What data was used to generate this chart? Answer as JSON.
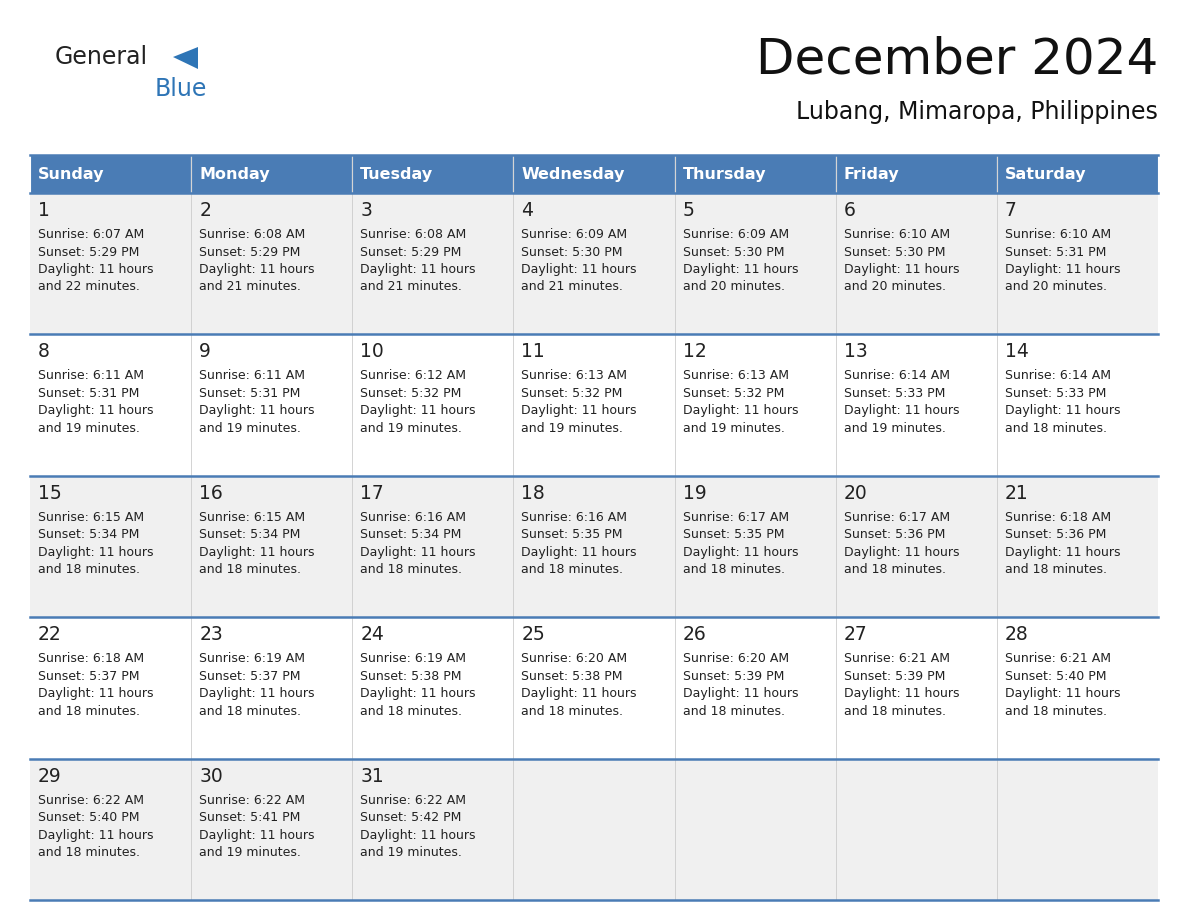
{
  "title": "December 2024",
  "subtitle": "Lubang, Mimaropa, Philippines",
  "header_bg_color": "#4a7cb5",
  "header_text_color": "#FFFFFF",
  "day_names": [
    "Sunday",
    "Monday",
    "Tuesday",
    "Wednesday",
    "Thursday",
    "Friday",
    "Saturday"
  ],
  "row_bg_colors": [
    "#f0f0f0",
    "#ffffff",
    "#f0f0f0",
    "#ffffff",
    "#f0f0f0"
  ],
  "cell_text_color": "#222222",
  "date_text_color": "#222222",
  "divider_color": "#4a7cb5",
  "logo_general_color": "#222222",
  "logo_blue_color": "#2E75B6",
  "calendar_data": [
    [
      {
        "day": 1,
        "sunrise": "6:07 AM",
        "sunset": "5:29 PM",
        "daylight_h": "11 hours",
        "daylight_m": "and 22 minutes."
      },
      {
        "day": 2,
        "sunrise": "6:08 AM",
        "sunset": "5:29 PM",
        "daylight_h": "11 hours",
        "daylight_m": "and 21 minutes."
      },
      {
        "day": 3,
        "sunrise": "6:08 AM",
        "sunset": "5:29 PM",
        "daylight_h": "11 hours",
        "daylight_m": "and 21 minutes."
      },
      {
        "day": 4,
        "sunrise": "6:09 AM",
        "sunset": "5:30 PM",
        "daylight_h": "11 hours",
        "daylight_m": "and 21 minutes."
      },
      {
        "day": 5,
        "sunrise": "6:09 AM",
        "sunset": "5:30 PM",
        "daylight_h": "11 hours",
        "daylight_m": "and 20 minutes."
      },
      {
        "day": 6,
        "sunrise": "6:10 AM",
        "sunset": "5:30 PM",
        "daylight_h": "11 hours",
        "daylight_m": "and 20 minutes."
      },
      {
        "day": 7,
        "sunrise": "6:10 AM",
        "sunset": "5:31 PM",
        "daylight_h": "11 hours",
        "daylight_m": "and 20 minutes."
      }
    ],
    [
      {
        "day": 8,
        "sunrise": "6:11 AM",
        "sunset": "5:31 PM",
        "daylight_h": "11 hours",
        "daylight_m": "and 19 minutes."
      },
      {
        "day": 9,
        "sunrise": "6:11 AM",
        "sunset": "5:31 PM",
        "daylight_h": "11 hours",
        "daylight_m": "and 19 minutes."
      },
      {
        "day": 10,
        "sunrise": "6:12 AM",
        "sunset": "5:32 PM",
        "daylight_h": "11 hours",
        "daylight_m": "and 19 minutes."
      },
      {
        "day": 11,
        "sunrise": "6:13 AM",
        "sunset": "5:32 PM",
        "daylight_h": "11 hours",
        "daylight_m": "and 19 minutes."
      },
      {
        "day": 12,
        "sunrise": "6:13 AM",
        "sunset": "5:32 PM",
        "daylight_h": "11 hours",
        "daylight_m": "and 19 minutes."
      },
      {
        "day": 13,
        "sunrise": "6:14 AM",
        "sunset": "5:33 PM",
        "daylight_h": "11 hours",
        "daylight_m": "and 19 minutes."
      },
      {
        "day": 14,
        "sunrise": "6:14 AM",
        "sunset": "5:33 PM",
        "daylight_h": "11 hours",
        "daylight_m": "and 18 minutes."
      }
    ],
    [
      {
        "day": 15,
        "sunrise": "6:15 AM",
        "sunset": "5:34 PM",
        "daylight_h": "11 hours",
        "daylight_m": "and 18 minutes."
      },
      {
        "day": 16,
        "sunrise": "6:15 AM",
        "sunset": "5:34 PM",
        "daylight_h": "11 hours",
        "daylight_m": "and 18 minutes."
      },
      {
        "day": 17,
        "sunrise": "6:16 AM",
        "sunset": "5:34 PM",
        "daylight_h": "11 hours",
        "daylight_m": "and 18 minutes."
      },
      {
        "day": 18,
        "sunrise": "6:16 AM",
        "sunset": "5:35 PM",
        "daylight_h": "11 hours",
        "daylight_m": "and 18 minutes."
      },
      {
        "day": 19,
        "sunrise": "6:17 AM",
        "sunset": "5:35 PM",
        "daylight_h": "11 hours",
        "daylight_m": "and 18 minutes."
      },
      {
        "day": 20,
        "sunrise": "6:17 AM",
        "sunset": "5:36 PM",
        "daylight_h": "11 hours",
        "daylight_m": "and 18 minutes."
      },
      {
        "day": 21,
        "sunrise": "6:18 AM",
        "sunset": "5:36 PM",
        "daylight_h": "11 hours",
        "daylight_m": "and 18 minutes."
      }
    ],
    [
      {
        "day": 22,
        "sunrise": "6:18 AM",
        "sunset": "5:37 PM",
        "daylight_h": "11 hours",
        "daylight_m": "and 18 minutes."
      },
      {
        "day": 23,
        "sunrise": "6:19 AM",
        "sunset": "5:37 PM",
        "daylight_h": "11 hours",
        "daylight_m": "and 18 minutes."
      },
      {
        "day": 24,
        "sunrise": "6:19 AM",
        "sunset": "5:38 PM",
        "daylight_h": "11 hours",
        "daylight_m": "and 18 minutes."
      },
      {
        "day": 25,
        "sunrise": "6:20 AM",
        "sunset": "5:38 PM",
        "daylight_h": "11 hours",
        "daylight_m": "and 18 minutes."
      },
      {
        "day": 26,
        "sunrise": "6:20 AM",
        "sunset": "5:39 PM",
        "daylight_h": "11 hours",
        "daylight_m": "and 18 minutes."
      },
      {
        "day": 27,
        "sunrise": "6:21 AM",
        "sunset": "5:39 PM",
        "daylight_h": "11 hours",
        "daylight_m": "and 18 minutes."
      },
      {
        "day": 28,
        "sunrise": "6:21 AM",
        "sunset": "5:40 PM",
        "daylight_h": "11 hours",
        "daylight_m": "and 18 minutes."
      }
    ],
    [
      {
        "day": 29,
        "sunrise": "6:22 AM",
        "sunset": "5:40 PM",
        "daylight_h": "11 hours",
        "daylight_m": "and 18 minutes."
      },
      {
        "day": 30,
        "sunrise": "6:22 AM",
        "sunset": "5:41 PM",
        "daylight_h": "11 hours",
        "daylight_m": "and 19 minutes."
      },
      {
        "day": 31,
        "sunrise": "6:22 AM",
        "sunset": "5:42 PM",
        "daylight_h": "11 hours",
        "daylight_m": "and 19 minutes."
      },
      null,
      null,
      null,
      null
    ]
  ]
}
